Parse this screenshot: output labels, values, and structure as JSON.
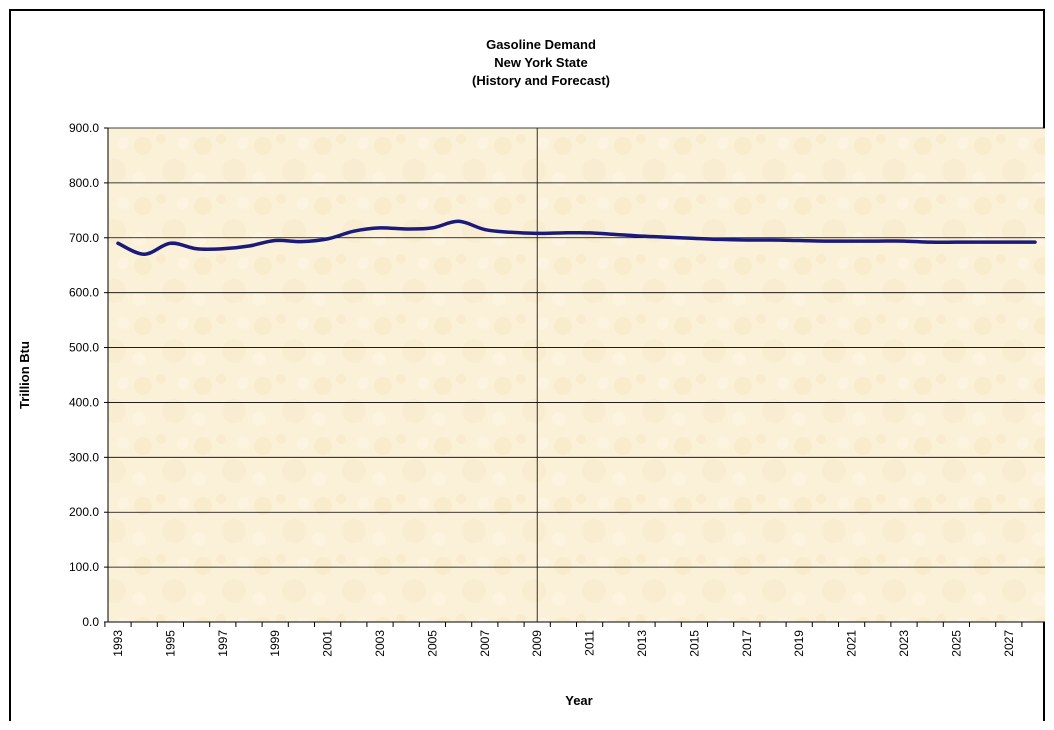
{
  "chart_data": {
    "type": "line",
    "title_lines": [
      "Gasoline Demand",
      "New York State",
      "(History and Forecast)"
    ],
    "xlabel": "Year",
    "ylabel": "Trillion Btu",
    "ylim": [
      0,
      900
    ],
    "yticks": [
      "0.0",
      "100.0",
      "200.0",
      "300.0",
      "400.0",
      "500.0",
      "600.0",
      "700.0",
      "800.0",
      "900.0"
    ],
    "xticks": [
      "1993",
      "1995",
      "1997",
      "1999",
      "2001",
      "2003",
      "2005",
      "2007",
      "2009",
      "2011",
      "2013",
      "2015",
      "2017",
      "2019",
      "2021",
      "2023",
      "2025",
      "2027"
    ],
    "grid": "horizontal",
    "divider_year": "2009",
    "series_color": "#1a1a7a",
    "plot_background": "#fbf1d8",
    "series": [
      {
        "x": [
          1993,
          1994,
          1995,
          1996,
          1997,
          1998,
          1999,
          2000,
          2001,
          2002,
          2003,
          2004,
          2005,
          2006,
          2007,
          2008,
          2009,
          2010,
          2011,
          2012,
          2013,
          2014,
          2015,
          2016,
          2017,
          2018,
          2019,
          2020,
          2021,
          2022,
          2023,
          2024,
          2025,
          2026,
          2027,
          2028
        ],
        "values": [
          690,
          670,
          690,
          680,
          680,
          685,
          695,
          693,
          698,
          712,
          718,
          716,
          718,
          730,
          715,
          710,
          708,
          709,
          709,
          706,
          703,
          701,
          699,
          697,
          696,
          696,
          695,
          694,
          694,
          694,
          694,
          692,
          692,
          692,
          692,
          692
        ]
      }
    ]
  }
}
